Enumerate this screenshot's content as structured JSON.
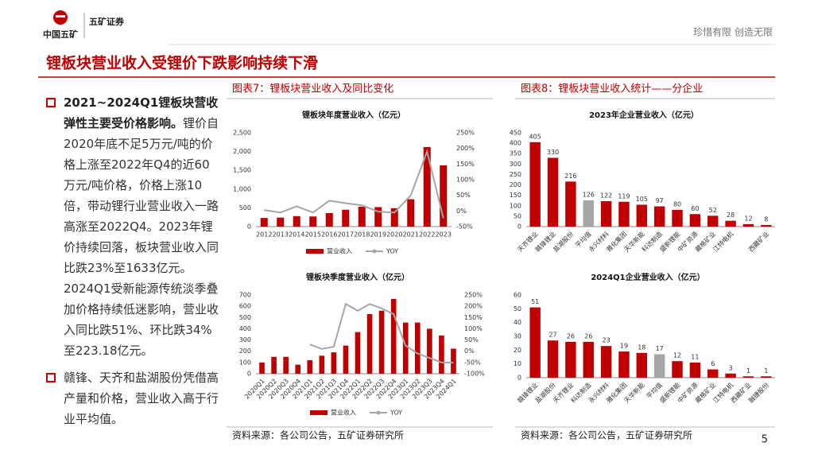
{
  "header": {
    "logo_text": "中国五矿",
    "brand": "五矿证券",
    "slogan": "珍惜有限 创造无限"
  },
  "title": "锂板块营业收入受锂价下跌影响持续下滑",
  "bullets": [
    {
      "bold": "2021~2024Q1锂板块营收弹性主要受价格影响。",
      "text": "锂价自2020年底不足5万元/吨的价格上涨至2022年Q4的近60万元/吨价格，价格上涨10倍，带动锂行业营业收入一路高涨至2022Q4。2023年锂价持续回落，板块营业收入同比跌23%至1633亿元。2024Q1受新能源传统淡季叠加价格持续低迷影响，营业收入同比跌51%、环比跌34%至223.18亿元。"
    },
    {
      "text": "赣锋、天齐和盐湖股份凭借高产量和价格，营业收入高于行业平均值。"
    }
  ],
  "figures": [
    {
      "caption": "图表7：锂板块营业收入及同比变化",
      "source": "资料来源：各公司公告，五矿证券研究所"
    },
    {
      "caption": "图表8：锂板块营业收入统计——分企业",
      "source": "资料来源：各公司公告，五矿证券研究所"
    }
  ],
  "page_number": "5",
  "chart_data": [
    {
      "type": "combo",
      "title": "锂板块年度营业收入（亿元）",
      "categories": [
        "2012",
        "2013",
        "2014",
        "2015",
        "2016",
        "2017",
        "2018",
        "2019",
        "2020",
        "2021",
        "2022",
        "2023"
      ],
      "series": [
        {
          "name": "营业收入",
          "color": "#c00000",
          "values": [
            230,
            240,
            280,
            270,
            360,
            450,
            530,
            520,
            490,
            730,
            2120,
            1633
          ]
        },
        {
          "name": "YOY",
          "color": "#a6a6a6",
          "axis": "y2",
          "values": [
            3,
            -5,
            15,
            -5,
            33,
            25,
            18,
            -2,
            -5,
            50,
            190,
            -23
          ]
        }
      ],
      "ylim": [
        0,
        2500
      ],
      "yticks": [
        0,
        500,
        {
          "value": 1000,
          "label": "1,000"
        },
        {
          "value": 1500,
          "label": "1,500"
        },
        {
          "value": 2000,
          "label": "2,000"
        },
        {
          "value": 2500,
          "label": "2,500"
        }
      ],
      "y2lim": [
        -50,
        250
      ],
      "y2ticks": [
        {
          "value": -50,
          "label": "-50%"
        },
        {
          "value": 0,
          "label": "0%"
        },
        {
          "value": 50,
          "label": "50%"
        },
        {
          "value": 100,
          "label": "100%"
        },
        {
          "value": 150,
          "label": "150%"
        },
        {
          "value": 200,
          "label": "200%"
        },
        {
          "value": 250,
          "label": "250%"
        }
      ],
      "grid": false,
      "legend": "bottom",
      "rotate_labels": false
    },
    {
      "type": "combo",
      "title": "锂板块季度营业收入（亿元）",
      "categories": [
        "2020Q1",
        "2020Q2",
        "2020Q3",
        "2020Q4",
        "2021Q1",
        "2021Q2",
        "2021Q3",
        "2021Q4",
        "2022Q1",
        "2022Q2",
        "2022Q3",
        "2022Q4",
        "2023Q1",
        "2023Q2",
        "2023Q3",
        "2023Q4",
        "2024Q1"
      ],
      "series": [
        {
          "name": "营业收入",
          "color": "#c00000",
          "values": [
            100,
            150,
            150,
            80,
            120,
            160,
            190,
            250,
            370,
            530,
            560,
            665,
            455,
            455,
            400,
            340,
            223
          ]
        },
        {
          "name": "YOY",
          "color": "#a6a6a6",
          "axis": "y2",
          "values": [
            null,
            null,
            null,
            null,
            30,
            10,
            20,
            210,
            180,
            210,
            190,
            165,
            25,
            -10,
            -30,
            -50,
            -51
          ]
        }
      ],
      "ylim": [
        0,
        700
      ],
      "yticks": [
        0,
        100,
        200,
        300,
        400,
        500,
        600,
        700
      ],
      "y2lim": [
        -100,
        250
      ],
      "y2ticks": [
        {
          "value": -100,
          "label": "-100%"
        },
        {
          "value": -50,
          "label": "-50%"
        },
        {
          "value": 0,
          "label": "0%"
        },
        {
          "value": 50,
          "label": "50%"
        },
        {
          "value": 100,
          "label": "100%"
        },
        {
          "value": 150,
          "label": "150%"
        },
        {
          "value": 200,
          "label": "200%"
        },
        {
          "value": 250,
          "label": "250%"
        }
      ],
      "grid": false,
      "legend": "bottom",
      "rotate_labels": true
    },
    {
      "type": "bar",
      "title": "2023年企业营业收入（亿元）",
      "categories": [
        "天齐锂业",
        "赣锋锂业",
        "盐湖股份",
        "平均值",
        "永兴材料",
        "雅化集团",
        "天华新能",
        "科达制造",
        "盛新锂能",
        "中矿资源",
        "藏格矿业",
        "江特电机",
        null,
        "西藏矿业"
      ],
      "values": [
        405,
        330,
        216,
        126,
        122,
        119,
        105,
        97,
        80,
        60,
        52,
        28,
        12,
        8
      ],
      "colors": [
        "#c00000",
        "#c00000",
        "#c00000",
        "#a6a6a6",
        "#c00000",
        "#c00000",
        "#c00000",
        "#c00000",
        "#c00000",
        "#c00000",
        "#c00000",
        "#c00000",
        "#c00000",
        "#c00000"
      ],
      "ylim": [
        0,
        450
      ],
      "yticks": [
        0,
        50,
        100,
        150,
        200,
        250,
        300,
        350,
        400,
        450
      ],
      "grid": false,
      "data_labels": true,
      "rotate_labels": true
    },
    {
      "type": "bar",
      "title": "2024Q1企业营业收入（亿元）",
      "categories": [
        "赣锋锂业",
        "盐湖股份",
        "天齐锂业",
        "科达制造",
        "永兴材料",
        "雅化集团",
        "天华新能",
        "平均值",
        "盛新锂能",
        "中矿资源",
        "藏格矿业",
        "江特电机",
        "西藏矿业",
        "融捷股份"
      ],
      "values": [
        51,
        27,
        26,
        26,
        23,
        19,
        18,
        17,
        12,
        11,
        6,
        3,
        1,
        1
      ],
      "colors": [
        "#c00000",
        "#c00000",
        "#c00000",
        "#c00000",
        "#c00000",
        "#c00000",
        "#c00000",
        "#a6a6a6",
        "#c00000",
        "#c00000",
        "#c00000",
        "#c00000",
        "#c00000",
        "#c00000"
      ],
      "ylim": [
        0,
        60
      ],
      "yticks": [
        0,
        10,
        20,
        30,
        40,
        50,
        60
      ],
      "grid": false,
      "data_labels": true,
      "rotate_labels": true
    }
  ]
}
